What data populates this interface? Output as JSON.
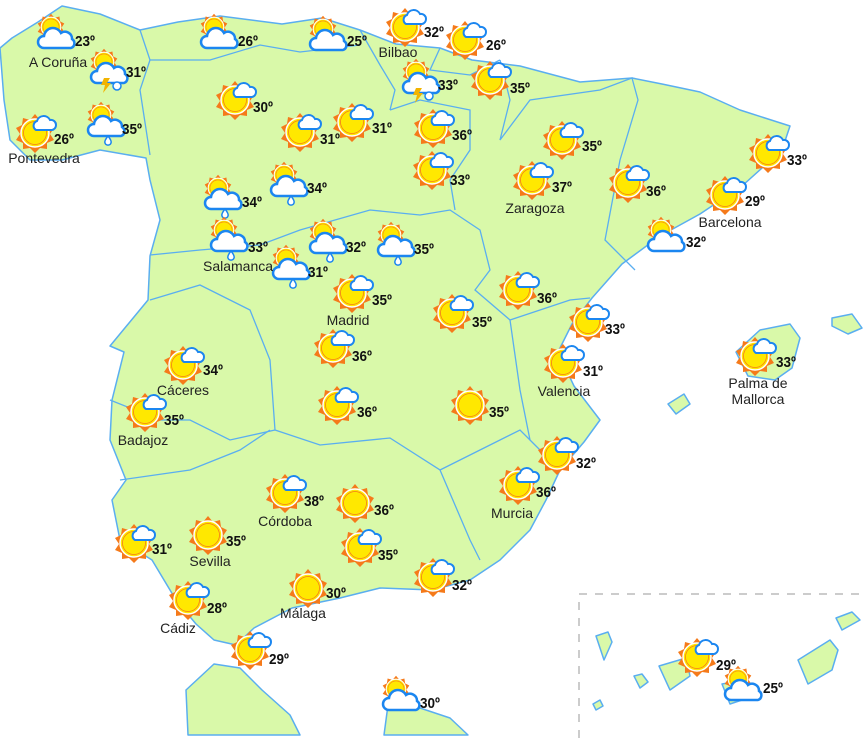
{
  "colors": {
    "land": "#d9f9a9",
    "border": "#5aaef0",
    "sea": "#ffffff",
    "sun": "#ffe800",
    "sun_rays": "#f57a1a",
    "cloud_stroke": "#1b86f0",
    "bolt": "#f2b400"
  },
  "forecast": [
    {
      "icon": "cloud-sun",
      "temp": "23º",
      "city": "A Coruña"
    },
    {
      "icon": "storm",
      "temp": "31º",
      "city": ""
    },
    {
      "icon": "sun-cloud",
      "temp": "26º",
      "city": "Pontevedra"
    },
    {
      "icon": "rain",
      "temp": "35º",
      "city": ""
    },
    {
      "icon": "cloud-sun",
      "temp": "26º",
      "city": ""
    },
    {
      "icon": "cloud-sun",
      "temp": "25º",
      "city": ""
    },
    {
      "icon": "sun-cloud",
      "temp": "32º",
      "city": "Bilbao"
    },
    {
      "icon": "sun-cloud",
      "temp": "26º",
      "city": ""
    },
    {
      "icon": "storm",
      "temp": "33º",
      "city": ""
    },
    {
      "icon": "sun-cloud",
      "temp": "35º",
      "city": ""
    },
    {
      "icon": "sun-cloud",
      "temp": "30º",
      "city": ""
    },
    {
      "icon": "sun-cloud",
      "temp": "31º",
      "city": ""
    },
    {
      "icon": "sun-cloud",
      "temp": "31º",
      "city": ""
    },
    {
      "icon": "sun-cloud",
      "temp": "36º",
      "city": ""
    },
    {
      "icon": "sun-cloud",
      "temp": "35º",
      "city": ""
    },
    {
      "icon": "sun-cloud",
      "temp": "33º",
      "city": ""
    },
    {
      "icon": "sun-cloud",
      "temp": "37º",
      "city": "Zaragoza"
    },
    {
      "icon": "sun-cloud",
      "temp": "36º",
      "city": ""
    },
    {
      "icon": "sun-cloud",
      "temp": "33º",
      "city": ""
    },
    {
      "icon": "sun-cloud",
      "temp": "29º",
      "city": "Barcelona"
    },
    {
      "icon": "cloud-sun",
      "temp": "32º",
      "city": ""
    },
    {
      "icon": "rain",
      "temp": "34º",
      "city": ""
    },
    {
      "icon": "rain",
      "temp": "34º",
      "city": ""
    },
    {
      "icon": "rain",
      "temp": "33º",
      "city": "Salamanca"
    },
    {
      "icon": "rain",
      "temp": "31º",
      "city": ""
    },
    {
      "icon": "rain",
      "temp": "32º",
      "city": ""
    },
    {
      "icon": "rain",
      "temp": "35º",
      "city": ""
    },
    {
      "icon": "sun-cloud",
      "temp": "35º",
      "city": "Madrid"
    },
    {
      "icon": "sun-cloud",
      "temp": "35º",
      "city": ""
    },
    {
      "icon": "sun-cloud",
      "temp": "36º",
      "city": ""
    },
    {
      "icon": "sun-cloud",
      "temp": "33º",
      "city": ""
    },
    {
      "icon": "sun-cloud",
      "temp": "34º",
      "city": "Cáceres"
    },
    {
      "icon": "sun-cloud",
      "temp": "35º",
      "city": "Badajoz"
    },
    {
      "icon": "sun-cloud",
      "temp": "36º",
      "city": ""
    },
    {
      "icon": "sun-cloud",
      "temp": "31º",
      "city": "Valencia"
    },
    {
      "icon": "sun-cloud",
      "temp": "33º",
      "city": "Palma de\nMallorca"
    },
    {
      "icon": "sun-cloud",
      "temp": "36º",
      "city": ""
    },
    {
      "icon": "sun",
      "temp": "35º",
      "city": ""
    },
    {
      "icon": "sun-cloud",
      "temp": "32º",
      "city": ""
    },
    {
      "icon": "sun-cloud",
      "temp": "36º",
      "city": "Murcia"
    },
    {
      "icon": "sun-cloud",
      "temp": "38º",
      "city": "Córdoba"
    },
    {
      "icon": "sun",
      "temp": "36º",
      "city": ""
    },
    {
      "icon": "sun-cloud",
      "temp": "35º",
      "city": ""
    },
    {
      "icon": "sun",
      "temp": "35º",
      "city": "Sevilla"
    },
    {
      "icon": "sun-cloud",
      "temp": "31º",
      "city": ""
    },
    {
      "icon": "sun-cloud",
      "temp": "28º",
      "city": "Cádiz"
    },
    {
      "icon": "sun",
      "temp": "30º",
      "city": "Málaga"
    },
    {
      "icon": "sun-cloud",
      "temp": "32º",
      "city": ""
    },
    {
      "icon": "sun-cloud",
      "temp": "29º",
      "city": ""
    },
    {
      "icon": "cloud-sun",
      "temp": "30º",
      "city": ""
    },
    {
      "icon": "sun-cloud",
      "temp": "29º",
      "city": ""
    },
    {
      "icon": "cloud-sun",
      "temp": "25º",
      "city": ""
    }
  ]
}
